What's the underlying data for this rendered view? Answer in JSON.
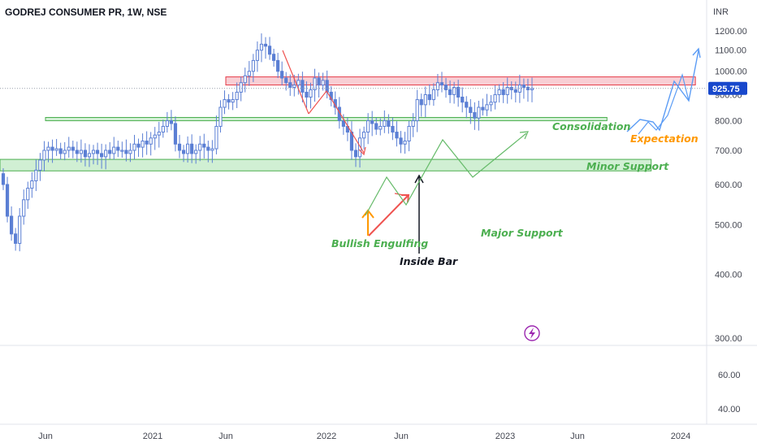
{
  "header": {
    "title": "GODREJ CONSUMER PR, 1W, NSE",
    "currency": "INR"
  },
  "colors": {
    "candle": "#5b7fd4",
    "support_fill": "#c8eccb",
    "support_stroke": "#4caf50",
    "resistance_fill": "#f7c6cc",
    "resistance_stroke": "#e53946",
    "red_path": "#ef5350",
    "green_path": "#66bb6a",
    "blue_path": "#2962ff",
    "orange": "#ff9800",
    "last_price_bg": "#1848cc",
    "icon": "#9c27b0"
  },
  "chart_data": {
    "type": "candlestick",
    "title": "GODREJ CONSUMER PR, 1W, NSE",
    "currency": "INR",
    "y_scale": "log",
    "y_ticks_upper": [
      {
        "value": 1200,
        "label": "1200.00"
      },
      {
        "value": 1100,
        "label": "1100.00"
      },
      {
        "value": 1000,
        "label": "1000.00"
      },
      {
        "value": 900,
        "label": "900.00"
      },
      {
        "value": 800,
        "label": "800.00"
      },
      {
        "value": 700,
        "label": "700.00"
      },
      {
        "value": 600,
        "label": "600.00"
      },
      {
        "value": 500,
        "label": "500.00"
      },
      {
        "value": 400,
        "label": "400.00"
      },
      {
        "value": 300,
        "label": "300.00"
      }
    ],
    "y_ticks_lower": [
      {
        "value": 60,
        "label": "60.00"
      },
      {
        "value": 40,
        "label": "40.00"
      }
    ],
    "x_ticks": [
      {
        "date": "2020-06",
        "label": "Jun"
      },
      {
        "date": "2021-01",
        "label": "2021"
      },
      {
        "date": "2021-06",
        "label": "Jun"
      },
      {
        "date": "2022-01",
        "label": "2022"
      },
      {
        "date": "2022-06",
        "label": "Jun"
      },
      {
        "date": "2023-01",
        "label": "2023"
      },
      {
        "date": "2023-06",
        "label": "Jun"
      },
      {
        "date": "2024-01",
        "label": "2024"
      }
    ],
    "last_price": {
      "value": 925.75,
      "label": "925.75"
    },
    "zones": [
      {
        "name": "resistance",
        "from": 940,
        "to": 975,
        "start": "2021-06",
        "end": "2024-02"
      },
      {
        "name": "minor-support",
        "from": 800,
        "to": 812,
        "start": "2020-06",
        "end": "2023-08"
      },
      {
        "name": "major-support",
        "from": 638,
        "to": 672,
        "start": "2020-03",
        "end": "2023-11"
      }
    ],
    "annotations": [
      {
        "text": "Consolidation",
        "color": "#4caf50"
      },
      {
        "text": "Expectation",
        "color": "#ff9800"
      },
      {
        "text": "Minor Support",
        "color": "#4caf50"
      },
      {
        "text": "Major Support",
        "color": "#4caf50"
      },
      {
        "text": "Bullish Engulfing",
        "color": "#4caf50"
      },
      {
        "text": "Inside Bar",
        "color": "#131722"
      }
    ],
    "weekly_closes_approx": [
      600,
      520,
      480,
      460,
      520,
      560,
      590,
      610,
      640,
      670,
      700,
      710,
      700,
      705,
      690,
      700,
      710,
      700,
      690,
      700,
      680,
      690,
      700,
      690,
      680,
      700,
      690,
      710,
      700,
      700,
      690,
      700,
      720,
      710,
      730,
      720,
      740,
      750,
      760,
      780,
      800,
      790,
      720,
      700,
      690,
      720,
      690,
      700,
      720,
      710,
      700,
      705,
      780,
      850,
      880,
      870,
      880,
      910,
      950,
      980,
      1000,
      1050,
      1100,
      1130,
      1120,
      1080,
      1050,
      1000,
      970,
      950,
      930,
      940,
      960,
      910,
      890,
      920,
      970,
      940,
      960,
      910,
      880,
      850,
      800,
      780,
      760,
      700,
      680,
      740,
      760,
      800,
      790,
      770,
      780,
      800,
      780,
      760,
      740,
      720,
      730,
      780,
      800,
      880,
      860,
      900,
      880,
      920,
      950,
      940,
      920,
      900,
      930,
      890,
      870,
      850,
      830,
      810,
      850,
      840,
      860,
      870,
      900,
      920,
      900,
      930,
      920,
      910,
      940,
      930,
      920,
      925.75
    ]
  }
}
